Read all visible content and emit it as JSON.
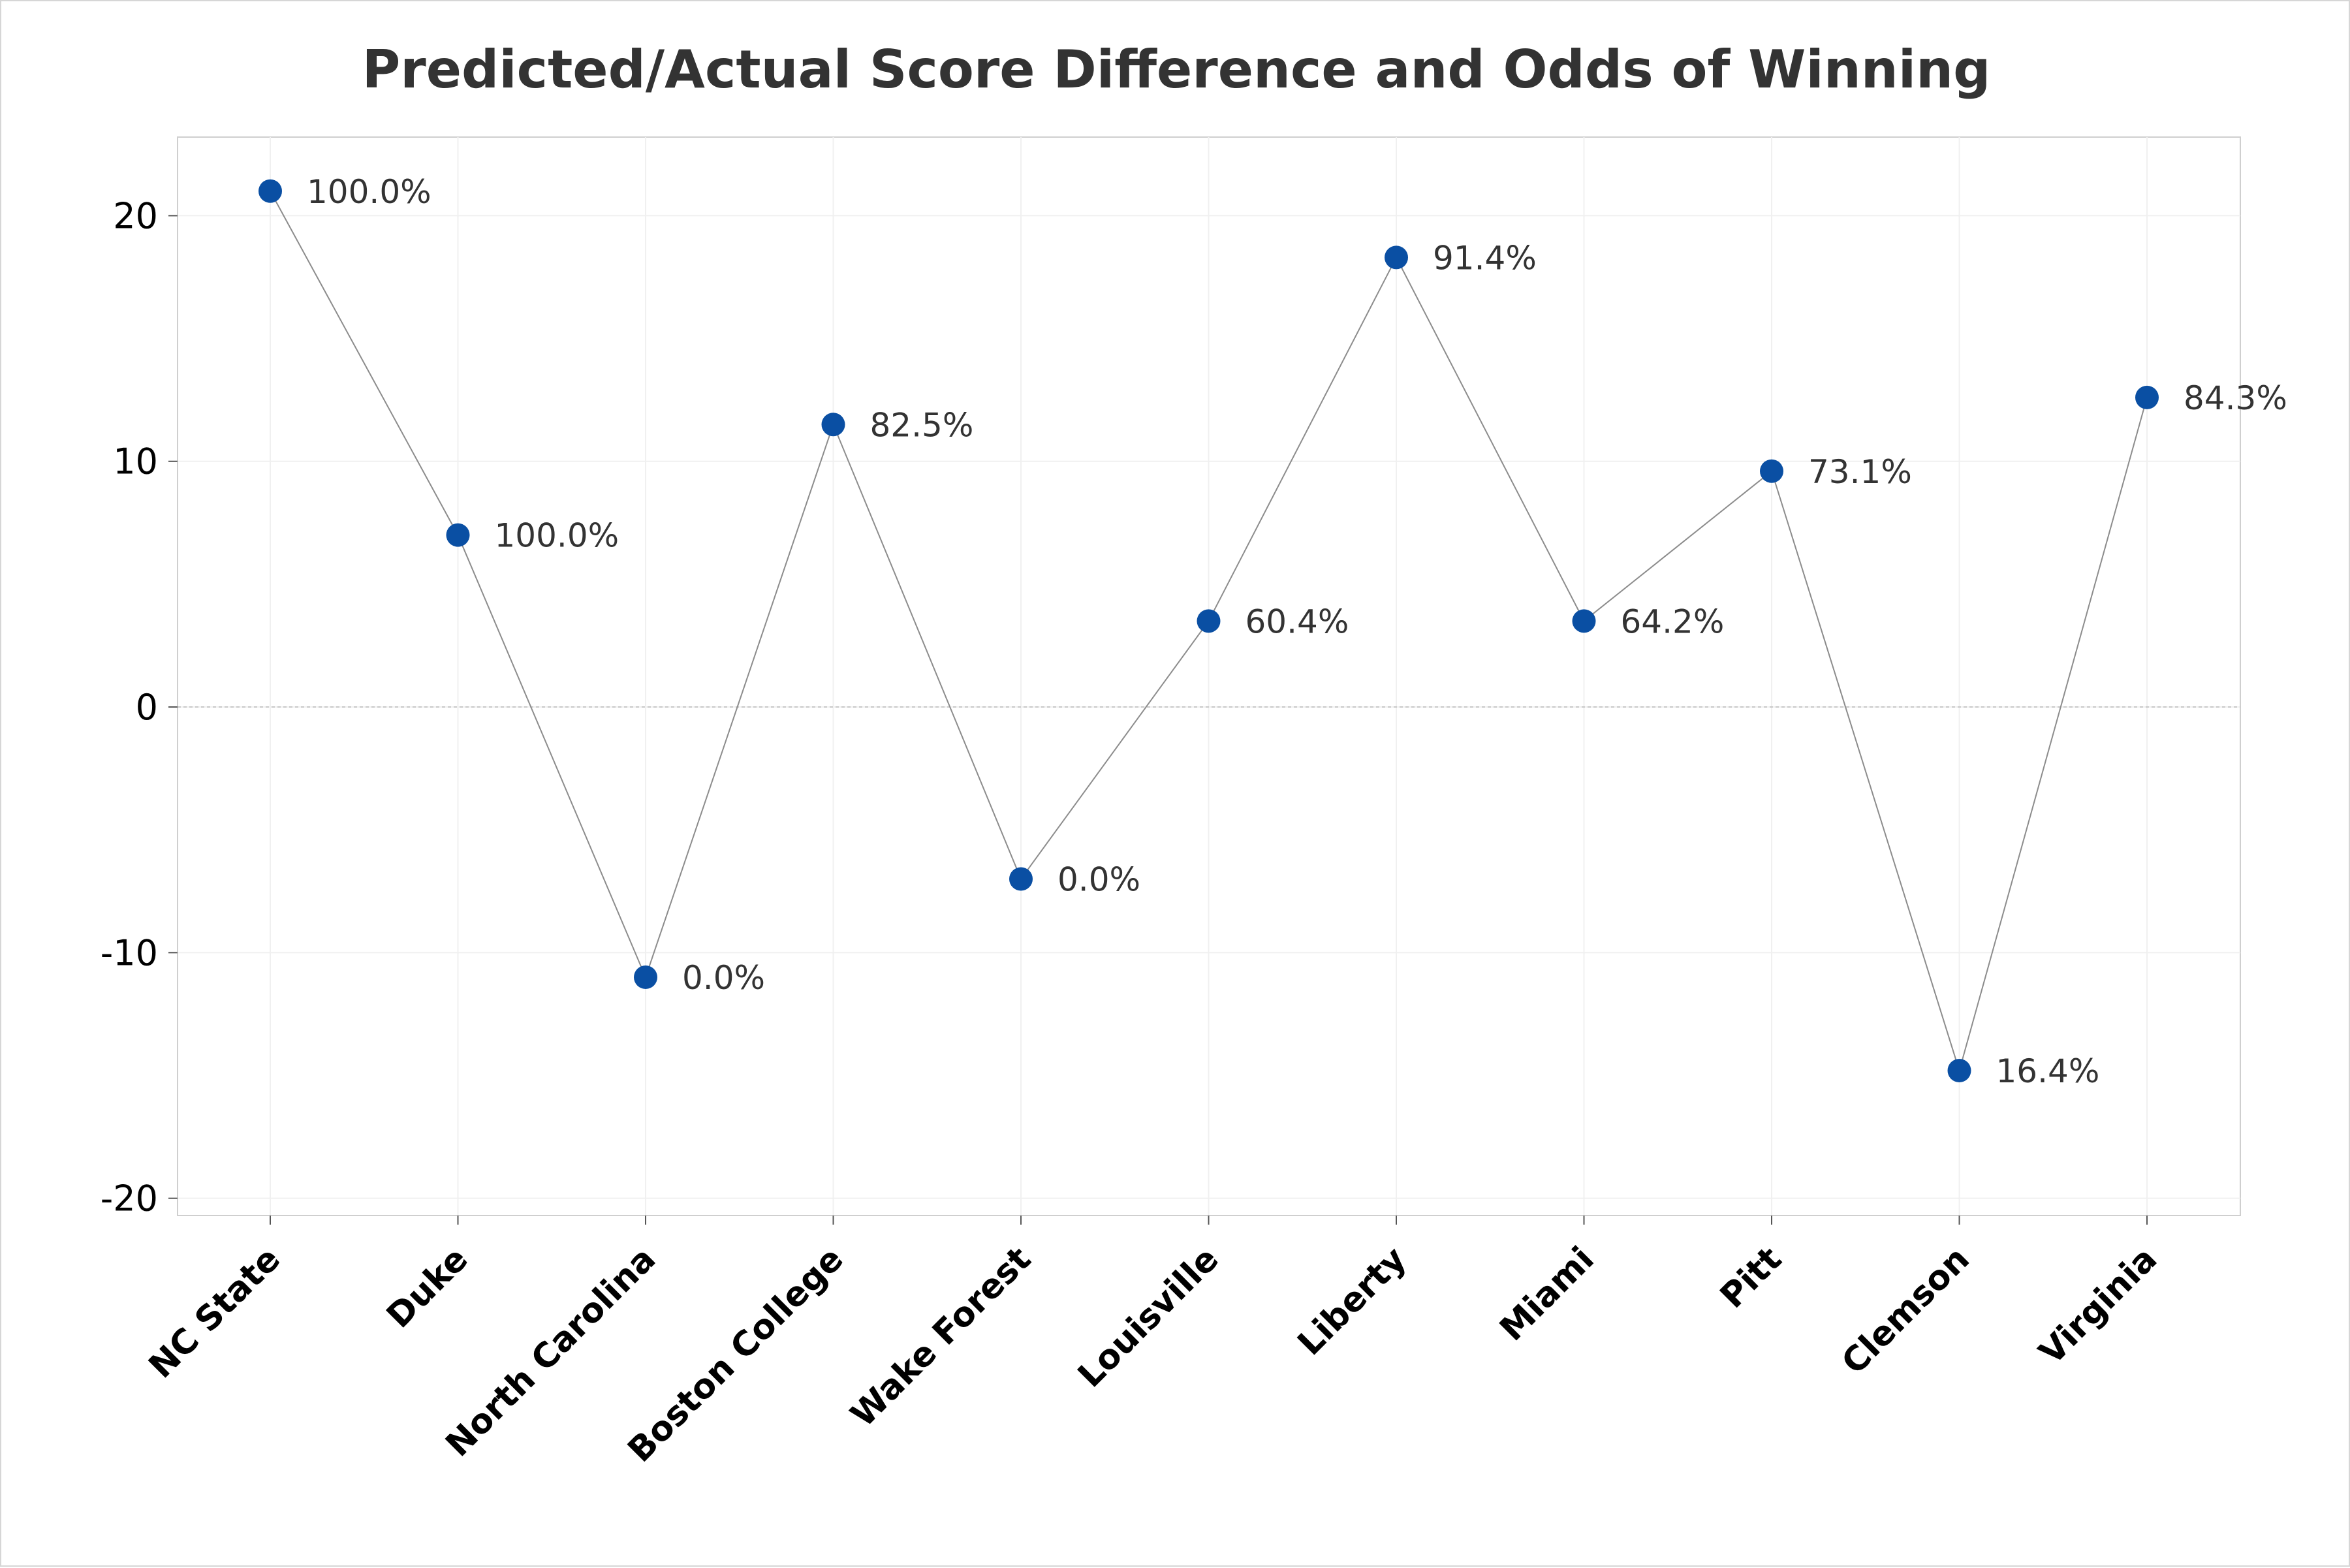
{
  "chart_data": {
    "type": "line",
    "title": "Predicted/Actual Score Difference and Odds of Winning",
    "xlabel": "",
    "ylabel": "",
    "categories": [
      "NC State",
      "Duke",
      "North Carolina",
      "Boston College",
      "Wake Forest",
      "Louisville",
      "Liberty",
      "Miami",
      "Pitt",
      "Clemson",
      "Virginia"
    ],
    "values": [
      21.0,
      7.0,
      -11.0,
      11.5,
      -7.0,
      3.5,
      18.3,
      3.5,
      9.6,
      -14.8,
      12.6
    ],
    "data_labels": [
      "100.0%",
      "100.0%",
      "0.0%",
      "82.5%",
      "0.0%",
      "60.4%",
      "91.4%",
      "64.2%",
      "73.1%",
      "16.4%",
      "84.3%"
    ],
    "ylim": [
      -20.7,
      23.2
    ],
    "yticks": [
      20,
      10,
      0,
      -10,
      -20
    ],
    "ytick_labels": [
      "20",
      "10",
      "0",
      "-10",
      "-20"
    ],
    "grid": true,
    "reference_line": 0,
    "colors": {
      "marker": "#0a4fa3",
      "line": "#8c8c8c",
      "grid": "#f0f0f0",
      "zero_line": "#c8c8c8",
      "plot_border": "#cfcfcf"
    }
  }
}
